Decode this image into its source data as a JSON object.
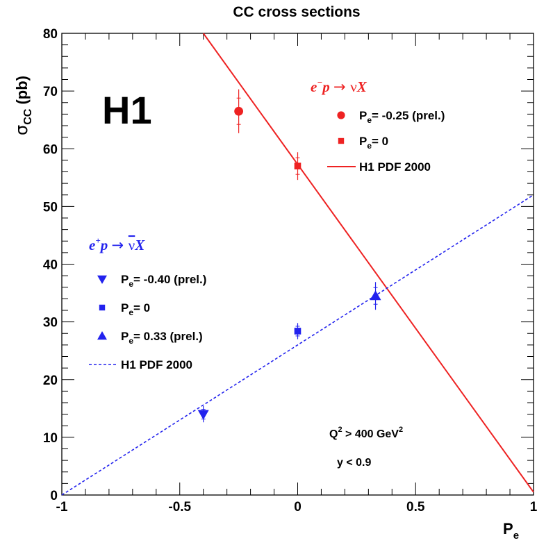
{
  "chart_data": {
    "type": "scatter",
    "title": "CC cross sections",
    "xlabel": "P",
    "xlabel_sub": "e",
    "ylabel": "σ",
    "ylabel_sub": "CC",
    "ylabel_unit": "(pb)",
    "xlim": [
      -1,
      1
    ],
    "ylim": [
      0,
      80
    ],
    "x_ticks": [
      -1,
      -0.5,
      0,
      0.5,
      1
    ],
    "x_tick_labels": [
      "-1",
      "-0.5",
      "0",
      "0.5",
      "1"
    ],
    "y_ticks": [
      0,
      10,
      20,
      30,
      40,
      50,
      60,
      70,
      80
    ],
    "y_tick_labels": [
      "0",
      "10",
      "20",
      "30",
      "40",
      "50",
      "60",
      "70",
      "80"
    ],
    "logo": "H1",
    "cuts": {
      "q2_label": "Q",
      "q2_sup": "2",
      "q2_rel": " > 400 GeV",
      "q2_unit_sup": "2",
      "y_label": "y < 0.9"
    },
    "groups": [
      {
        "process": {
          "a": "e",
          "sup": "−",
          "b": "p",
          "arrow": "→",
          "nu": "ν",
          "X": "X"
        },
        "color": "#ee2222",
        "line_style": "solid",
        "series": [
          {
            "name": "P= -0.25 (prel.)",
            "label_main": "P",
            "label_sub": "e",
            "label_rest": "= -0.25 (prel.)",
            "marker": "circle",
            "x": -0.25,
            "y": 66.5,
            "err_minus": 3.8,
            "err_plus": 3.8
          },
          {
            "name": "P= 0",
            "label_main": "P",
            "label_sub": "e",
            "label_rest": "=   0",
            "marker": "square",
            "x": 0,
            "y": 57.0,
            "err_minus": 2.4,
            "err_plus": 2.4
          }
        ],
        "curve": {
          "name": "H1 PDF 2000",
          "x": [
            -0.4,
            1.0
          ],
          "y": [
            80,
            0.5
          ]
        }
      },
      {
        "process": {
          "a": "e",
          "sup": "+",
          "b": "p",
          "arrow": "→",
          "nu": "ν",
          "X": "X"
        },
        "color": "#2222ee",
        "line_style": "dashed",
        "series": [
          {
            "name": "P= -0.40 (prel.)",
            "label_main": "P",
            "label_sub": "e",
            "label_rest": "= -0.40 (prel.)",
            "marker": "triangle-down",
            "x": -0.4,
            "y": 14.0,
            "err_minus": 1.4,
            "err_plus": 1.4
          },
          {
            "name": "P= 0",
            "label_main": "P",
            "label_sub": "e",
            "label_rest": "=   0",
            "marker": "square",
            "x": 0,
            "y": 28.4,
            "err_minus": 1.4,
            "err_plus": 1.4
          },
          {
            "name": "P= 0.33 (prel.)",
            "label_main": "P",
            "label_sub": "e",
            "label_rest": "=  0.33 (prel.)",
            "marker": "triangle-up",
            "x": 0.33,
            "y": 34.5,
            "err_minus": 2.4,
            "err_plus": 2.4
          }
        ],
        "curve": {
          "name": "H1 PDF 2000",
          "x": [
            -1.0,
            1.0
          ],
          "y": [
            0,
            52
          ]
        }
      }
    ],
    "grid": false,
    "legend_position": "inside"
  }
}
